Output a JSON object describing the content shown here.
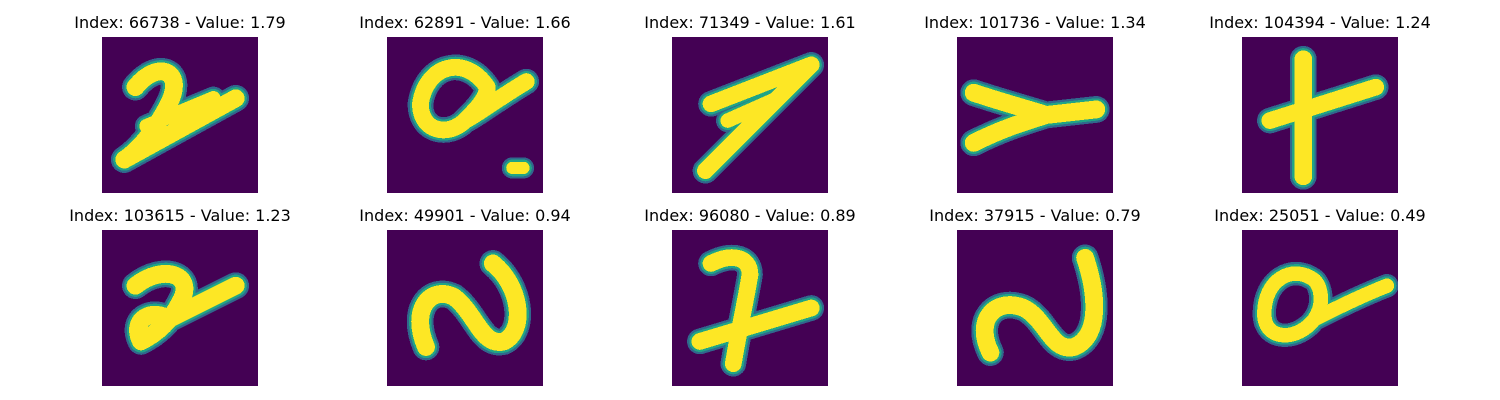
{
  "colors": {
    "background": "#440154",
    "low": "#30678d",
    "mid": "#20a486",
    "high": "#fde725"
  },
  "panels": [
    {
      "title": "Index: 66738 - Value: 1.79",
      "glyph": "2"
    },
    {
      "title": "Index: 62891 - Value: 1.66",
      "glyph": "a-dot"
    },
    {
      "title": "Index: 71349 - Value: 1.61",
      "glyph": "7-slant"
    },
    {
      "title": "Index: 101736 - Value: 1.34",
      "glyph": "y-side"
    },
    {
      "title": "Index: 104394 - Value: 1.24",
      "glyph": "plus"
    },
    {
      "title": "Index: 103615 - Value: 1.23",
      "glyph": "2-loop"
    },
    {
      "title": "Index: 49901 - Value: 0.94",
      "glyph": "n-loop"
    },
    {
      "title": "Index: 96080 - Value: 0.89",
      "glyph": "7-cross"
    },
    {
      "title": "Index: 37915 - Value: 0.79",
      "glyph": "n-curve"
    },
    {
      "title": "Index: 25051 - Value: 0.49",
      "glyph": "a-loop"
    }
  ]
}
